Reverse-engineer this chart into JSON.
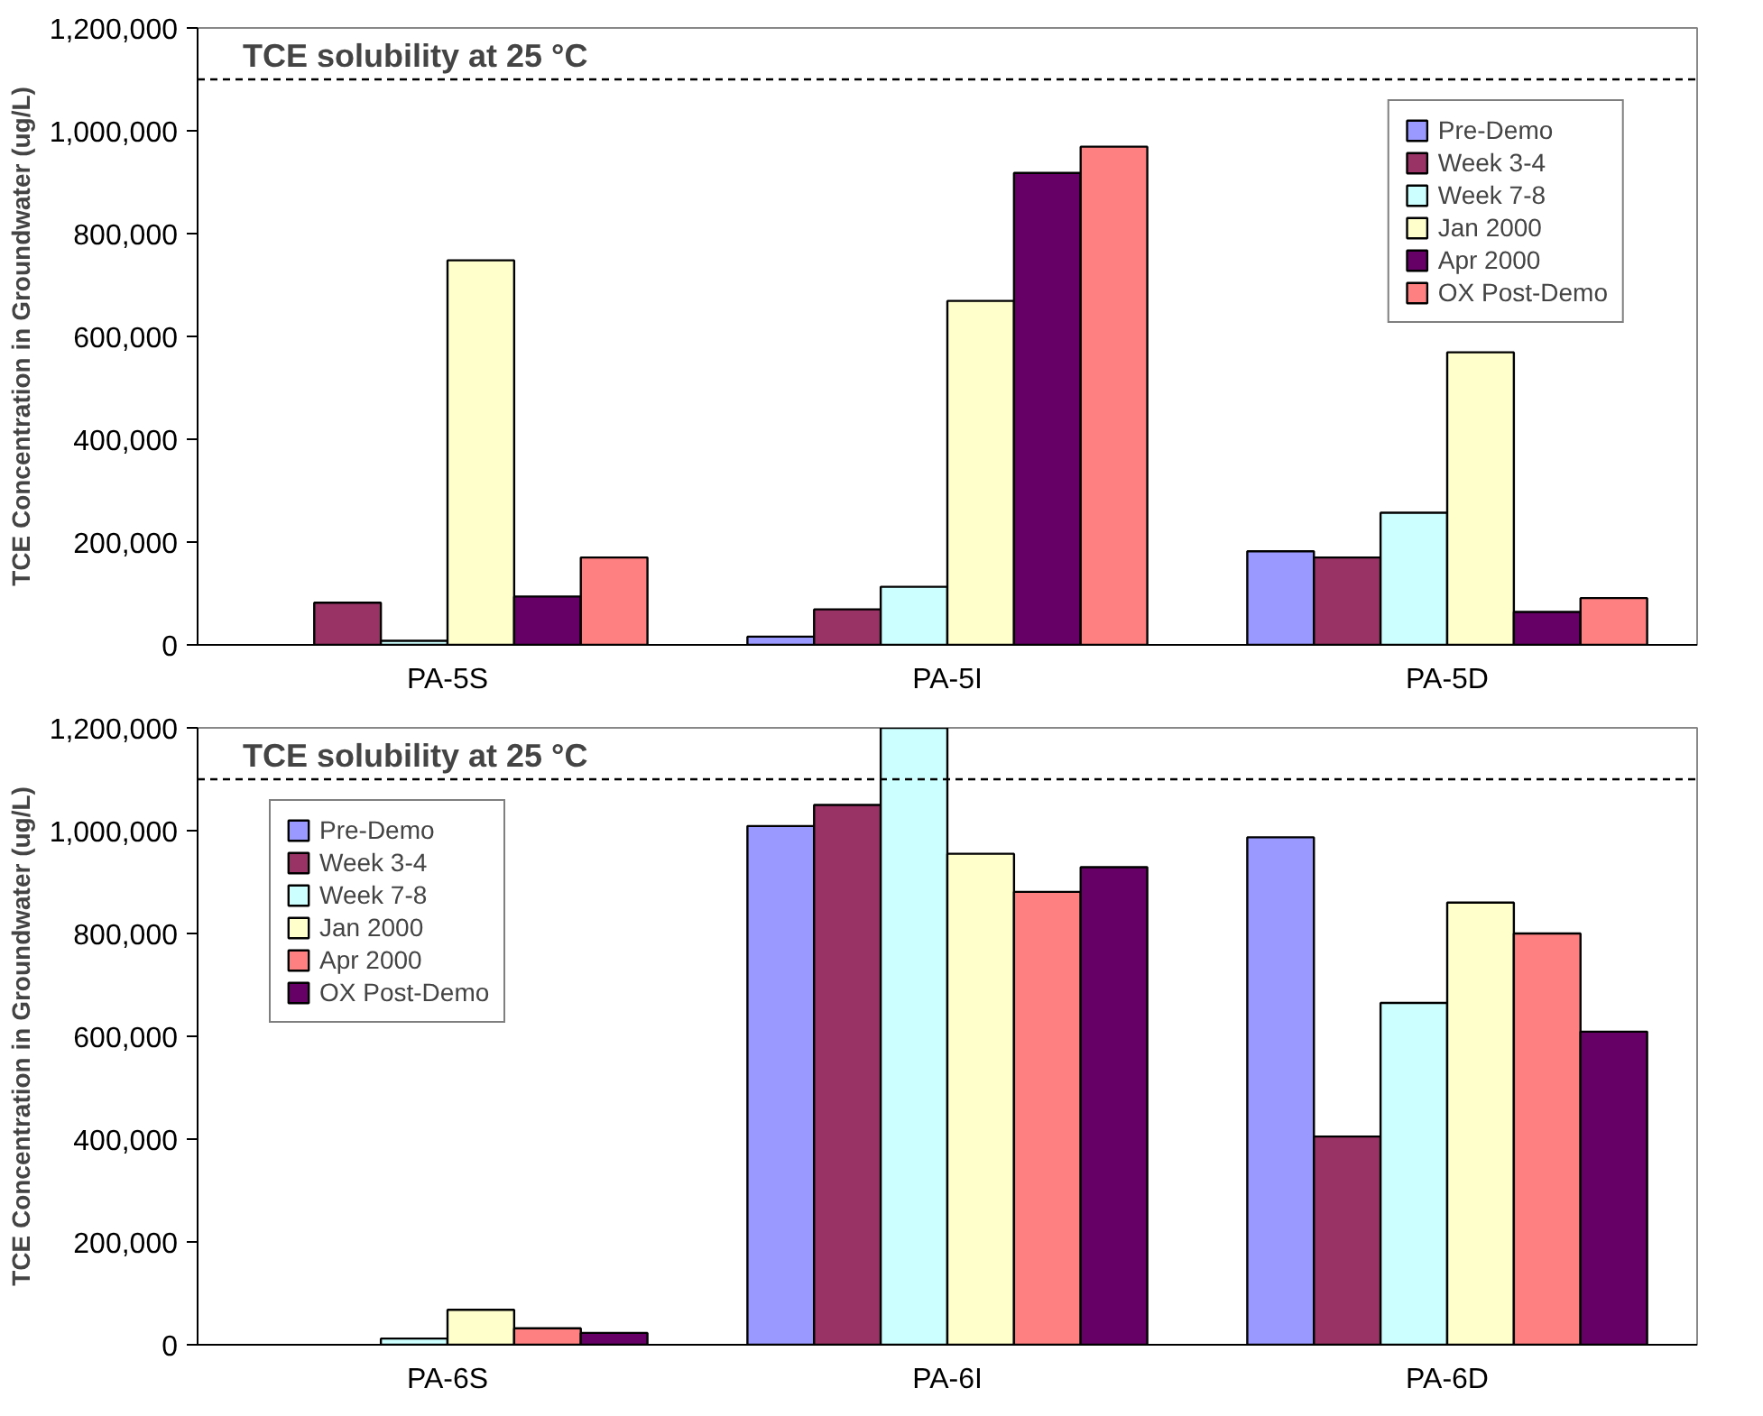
{
  "chart_data": [
    {
      "type": "bar",
      "ylabel": "TCE Concentration in Groundwater (ug/L)",
      "categories": [
        "PA-5S",
        "PA-5I",
        "PA-5D"
      ],
      "series": [
        {
          "name": "Pre-Demo",
          "color": "#9999ff",
          "values": [
            null,
            16000,
            182000
          ]
        },
        {
          "name": "Week 3-4",
          "color": "#993366",
          "values": [
            82000,
            69000,
            170000
          ]
        },
        {
          "name": "Week 7-8",
          "color": "#ccffff",
          "values": [
            8000,
            113000,
            257000
          ]
        },
        {
          "name": "Jan 2000",
          "color": "#ffffcc",
          "values": [
            748000,
            669000,
            569000
          ]
        },
        {
          "name": "Apr 2000",
          "color": "#660066",
          "values": [
            94000,
            918000,
            64000
          ]
        },
        {
          "name": "OX Post-Demo",
          "color": "#ff8080",
          "values": [
            170000,
            969000,
            91000
          ]
        }
      ],
      "ylim": [
        0,
        1200000
      ],
      "yticks": [
        0,
        {
          "value": 200000,
          "label": "200,000"
        },
        {
          "value": 400000,
          "label": "400,000"
        },
        {
          "value": 600000,
          "label": "600,000"
        },
        {
          "value": 800000,
          "label": "800,000"
        },
        {
          "value": 1000000,
          "label": "1,000,000"
        },
        {
          "value": 1200000,
          "label": "1,200,000"
        }
      ],
      "ref_lines": [
        {
          "axis": "y",
          "value": 1100000,
          "label": "TCE solubility at 25 °C",
          "color": "#000000",
          "line_style": "dashed"
        }
      ],
      "grid": false,
      "legend": "right"
    },
    {
      "type": "bar",
      "ylabel": "TCE Concentration in Groundwater (ug/L)",
      "categories": [
        "PA-6S",
        "PA-6I",
        "PA-6D"
      ],
      "series": [
        {
          "name": "Pre-Demo",
          "color": "#9999ff",
          "values": [
            null,
            1009000,
            987000
          ]
        },
        {
          "name": "Week 3-4",
          "color": "#993366",
          "values": [
            null,
            1050000,
            405000
          ]
        },
        {
          "name": "Week 7-8",
          "color": "#ccffff",
          "values": [
            12000,
            1200000,
            665000
          ]
        },
        {
          "name": "Jan 2000",
          "color": "#ffffcc",
          "values": [
            68000,
            955000,
            860000
          ]
        },
        {
          "name": "Apr 2000",
          "color": "#ff8080",
          "values": [
            32000,
            881000,
            800000
          ]
        },
        {
          "name": "OX Post-Demo",
          "color": "#660066",
          "values": [
            23000,
            929000,
            609000
          ]
        }
      ],
      "ylim": [
        0,
        1200000
      ],
      "yticks": [
        0,
        {
          "value": 200000,
          "label": "200,000"
        },
        {
          "value": 400000,
          "label": "400,000"
        },
        {
          "value": 600000,
          "label": "600,000"
        },
        {
          "value": 800000,
          "label": "800,000"
        },
        {
          "value": 1000000,
          "label": "1,000,000"
        },
        {
          "value": 1200000,
          "label": "1,200,000"
        }
      ],
      "ref_lines": [
        {
          "axis": "y",
          "value": 1100000,
          "label": "TCE solubility at 25 °C",
          "color": "#000000",
          "line_style": "dashed"
        }
      ],
      "grid": false,
      "legend": "top left"
    }
  ]
}
